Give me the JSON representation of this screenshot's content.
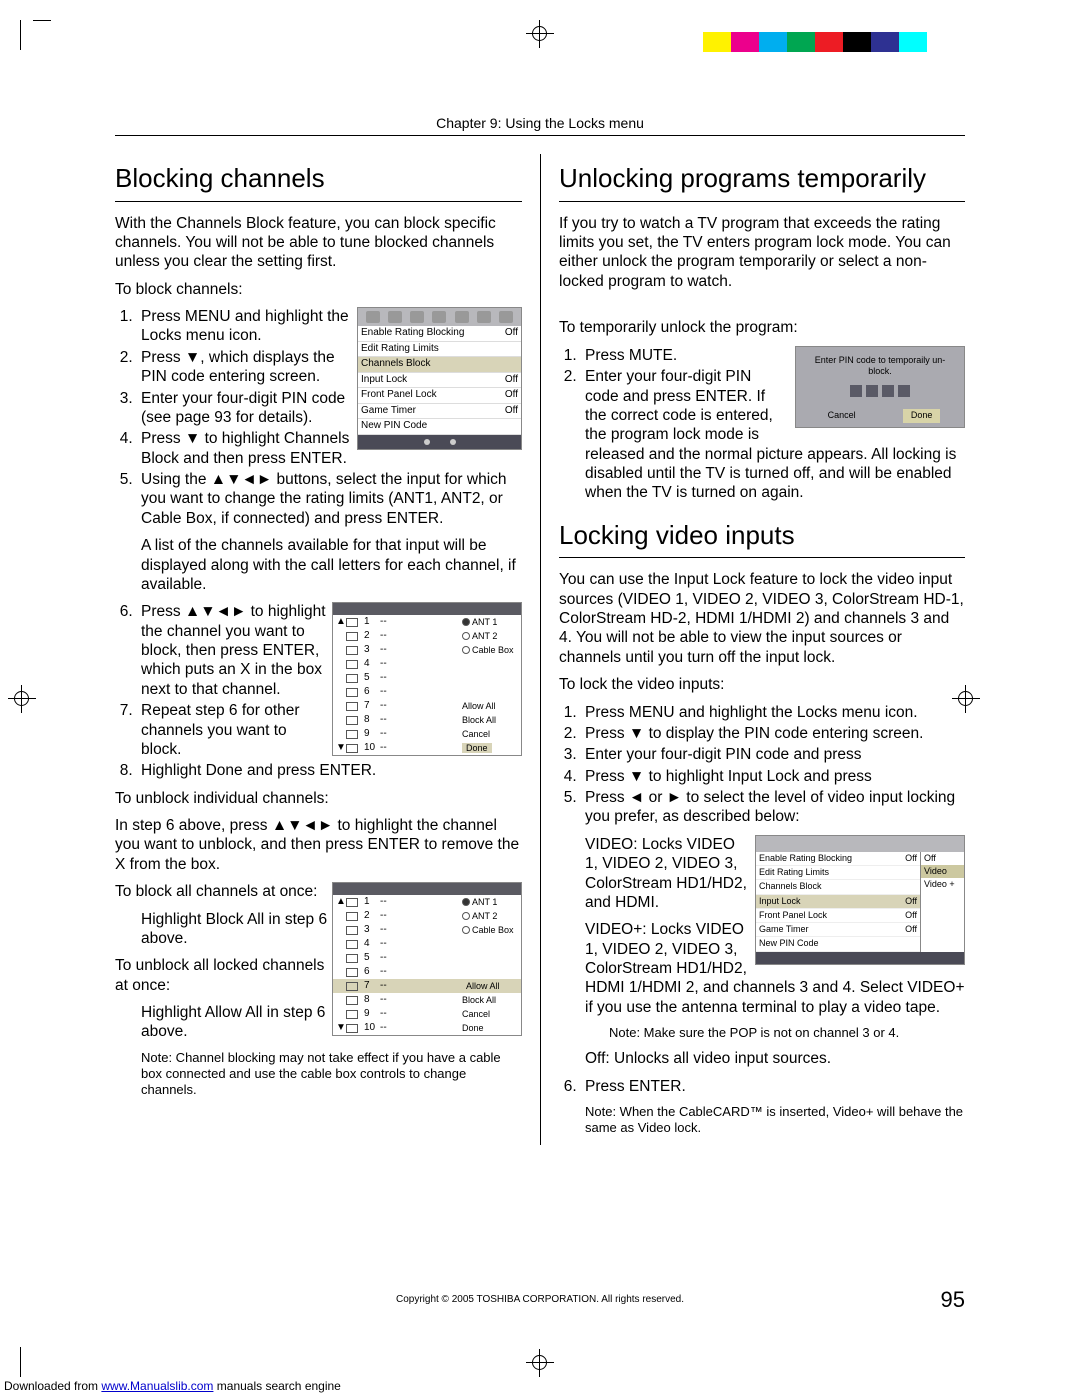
{
  "colorbar": [
    "#ffffff",
    "#fff200",
    "#ec008c",
    "#00aeef",
    "#00a651",
    "#ed1c24",
    "#000000",
    "#2e3192",
    "#00ffff",
    "#ffffff"
  ],
  "chapter_header": "Chapter 9: Using the Locks menu",
  "page_number": "95",
  "copyright": "Copyright © 2005 TOSHIBA CORPORATION. All rights reserved.",
  "footer": {
    "prefix": "Downloaded from ",
    "link": "www.Manualslib.com",
    "suffix": " manuals search engine"
  },
  "left": {
    "h_blocking": "Blocking channels",
    "intro": "With the Channels Block feature, you can block specific channels. You will not be able to tune blocked channels unless you clear the setting first.",
    "to_block": "To block channels:",
    "steps_block": [
      "Press MENU and highlight the Locks menu icon.",
      "Press ▼, which displays the PIN code entering screen.",
      "Enter your four-digit PIN code (see page 93 for details).",
      "Press ▼ to highlight Channels Block and then press ENTER.",
      "Using the ▲▼◄► buttons, select the input for which you want to change the rating limits (ANT1, ANT2, or Cable Box, if connected) and press ENTER.",
      "Press ▲▼◄► to highlight the channel you want to block, then press ENTER, which puts an  X  in the box next to that channel.",
      "Repeat step 6 for other channels you want to block.",
      "Highlight Done and press ENTER."
    ],
    "list_note": "A list of the channels available for that input will be displayed along with the call letters for each channel, if available.",
    "to_unblock": "To unblock individual channels:",
    "unblock_text": "In step 6 above, press ▲▼◄► to highlight the channel you want to unblock, and then press ENTER to remove the X from the box.",
    "to_block_all": "To block all channels at once:",
    "block_all_sub": "Highlight Block All in step 6 above.",
    "to_unblock_all": "To unblock all locked channels at once:",
    "unblock_all_sub": "Highlight Allow All in step 6 above.",
    "note_cable": "Note: Channel blocking may not take effect if you have a cable box connected and use the cable box controls to change channels."
  },
  "right": {
    "h_unlock": "Unlocking programs temporarily",
    "unlock_intro": "If you try to watch a TV program that exceeds the rating limits you set, the TV enters program lock mode. You can either unlock the program temporarily or select a non-locked program to watch.",
    "to_temp_unlock": "To temporarily unlock the program:",
    "temp_steps": [
      "Press MUTE.",
      "Enter your four-digit PIN code and press ENTER. If the correct code is entered, the program lock mode is released and the normal picture appears. All locking is disabled until the TV is turned off, and will be enabled when the TV is turned on again."
    ],
    "h_lock_inputs": "Locking video inputs",
    "lock_intro": "You can use the Input Lock feature to lock the video input sources (VIDEO 1, VIDEO 2, VIDEO 3, ColorStream HD-1, ColorStream HD-2, HDMI 1/HDMI 2) and channels 3 and 4. You will not be able to view the input sources or channels until you turn off the input lock.",
    "to_lock": "To lock the video inputs:",
    "lock_steps": [
      "Press MENU and highlight the Locks menu icon.",
      "Press ▼ to display the PIN code entering screen.",
      "Enter your four-digit PIN code and press",
      "Press ▼ to highlight Input Lock and press",
      "Press ◄ or ► to select the level of video input locking you prefer, as described below:"
    ],
    "video_desc": "VIDEO: Locks VIDEO 1, VIDEO 2, VIDEO 3, ColorStream HD1/HD2, and HDMI.",
    "videoplus_desc": "VIDEO+: Locks VIDEO 1, VIDEO 2, VIDEO 3, ColorStream HD1/HD2, HDMI 1/HDMI 2, and channels 3 and 4. Select VIDEO+ if you use the antenna terminal to play a video tape.",
    "pop_note": "Note: Make sure the POP is not on channel 3 or 4.",
    "off_desc": "Off: Unlocks all video input sources.",
    "step6": "Press ENTER.",
    "cablecard_note": "Note: When the CableCARD™ is inserted, Video+ will behave the same as Video lock."
  },
  "ui": {
    "menu1": {
      "rows": [
        {
          "lbl": "Enable Rating Blocking",
          "val": "Off"
        },
        {
          "lbl": "Edit Rating Limits",
          "val": ""
        },
        {
          "lbl": "Channels Block",
          "val": "",
          "hl": true
        },
        {
          "lbl": "Input Lock",
          "val": "Off"
        },
        {
          "lbl": "Front Panel Lock",
          "val": "Off"
        },
        {
          "lbl": "Game Timer",
          "val": "Off"
        },
        {
          "lbl": "New PIN Code",
          "val": ""
        }
      ]
    },
    "channels": {
      "rows": [
        {
          "n": "1",
          "d": "--",
          "r": "ANT 1",
          "sel": true,
          "arr": "▲"
        },
        {
          "n": "2",
          "d": "--",
          "r": "ANT 2"
        },
        {
          "n": "3",
          "d": "--",
          "r": "Cable Box"
        },
        {
          "n": "4",
          "d": "--"
        },
        {
          "n": "5",
          "d": "--"
        },
        {
          "n": "6",
          "d": "--"
        },
        {
          "n": "7",
          "d": "--",
          "r": "Allow All"
        },
        {
          "n": "8",
          "d": "--",
          "r": "Block All"
        },
        {
          "n": "9",
          "d": "--",
          "r": "Cancel"
        },
        {
          "n": "10",
          "d": "--",
          "r": "Done",
          "arr": "▼",
          "done": true
        }
      ]
    },
    "channels2": {
      "rows": [
        {
          "n": "1",
          "d": "--",
          "r": "ANT 1",
          "sel": true,
          "arr": "▲"
        },
        {
          "n": "2",
          "d": "--",
          "r": "ANT 2"
        },
        {
          "n": "3",
          "d": "--",
          "r": "Cable Box"
        },
        {
          "n": "4",
          "d": "--"
        },
        {
          "n": "5",
          "d": "--"
        },
        {
          "n": "6",
          "d": "--"
        },
        {
          "n": "7",
          "d": "--",
          "r": "Allow All",
          "hl": true
        },
        {
          "n": "8",
          "d": "--",
          "r": "Block All"
        },
        {
          "n": "9",
          "d": "--",
          "r": "Cancel"
        },
        {
          "n": "10",
          "d": "--",
          "r": "Done",
          "arr": "▼"
        }
      ]
    },
    "pin": {
      "title": "Enter PIN code to temporaily un-block.",
      "cancel": "Cancel",
      "done": "Done"
    },
    "input_lock": {
      "left_rows": [
        {
          "lbl": "Enable Rating Blocking",
          "val": "Off"
        },
        {
          "lbl": "Edit Rating Limits",
          "val": ""
        },
        {
          "lbl": "Channels Block",
          "val": ""
        },
        {
          "lbl": "Input Lock",
          "val": "Off",
          "hl": true
        },
        {
          "lbl": "Front Panel Lock",
          "val": "Off"
        },
        {
          "lbl": "Game Timer",
          "val": "Off"
        },
        {
          "lbl": "New PIN Code",
          "val": ""
        }
      ],
      "right_opts": [
        "Off",
        "Video",
        "Video +"
      ]
    }
  }
}
